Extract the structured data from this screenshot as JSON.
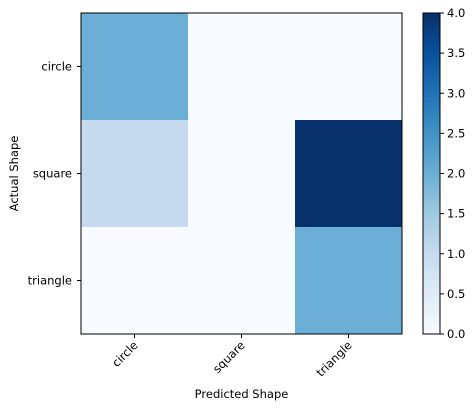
{
  "chart_data": {
    "type": "heatmap",
    "title": "",
    "xlabel": "Predicted Shape",
    "ylabel": "Actual Shape",
    "x_categories": [
      "circle",
      "square",
      "triangle"
    ],
    "y_categories": [
      "circle",
      "square",
      "triangle"
    ],
    "values": [
      [
        2,
        0,
        0
      ],
      [
        1,
        0,
        4
      ],
      [
        0,
        0,
        2
      ]
    ],
    "colormap": "Blues",
    "vmin": 0,
    "vmax": 4,
    "colorbar_ticks": [
      "0.0",
      "0.5",
      "1.0",
      "1.5",
      "2.0",
      "2.5",
      "3.0",
      "3.5",
      "4.0"
    ],
    "grid": false,
    "x_tick_rotation_deg": 45
  }
}
